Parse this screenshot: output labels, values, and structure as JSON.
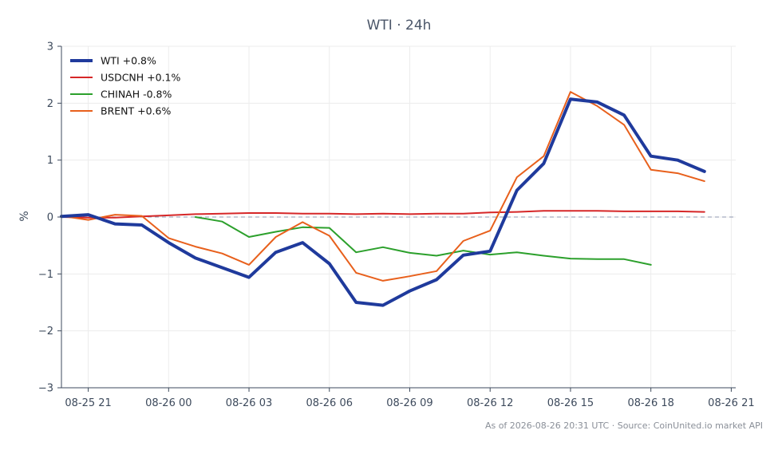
{
  "chart_data": {
    "type": "line",
    "title": "WTI · 24h",
    "xlabel": "",
    "ylabel": "%",
    "ylim": [
      -3,
      3
    ],
    "yticks": [
      -3,
      -2,
      -1,
      0,
      1,
      2,
      3
    ],
    "ytick_labels": [
      "−3",
      "−2",
      "−1",
      "0",
      "1",
      "2",
      "3"
    ],
    "xticks": [
      "08-25 21",
      "08-26 00",
      "08-26 03",
      "08-26 06",
      "08-26 09",
      "08-26 12",
      "08-26 15",
      "08-26 18",
      "08-26 21"
    ],
    "xlim": [
      "2026-08-25 20:00",
      "2026-08-26 21:10"
    ],
    "grid": true,
    "legend_position": "top-left",
    "zero_line": {
      "value": 0,
      "style": "dashed",
      "color": "#8f97b0"
    },
    "series": [
      {
        "name": "WTI +0.8%",
        "color": "#1f3a9c",
        "width": 4,
        "points": [
          [
            "2026-08-25 20:00",
            0.01
          ],
          [
            "2026-08-25 21:00",
            0.04
          ],
          [
            "2026-08-25 22:00",
            -0.12
          ],
          [
            "2026-08-25 23:00",
            -0.14
          ],
          [
            "2026-08-26 00:00",
            -0.45
          ],
          [
            "2026-08-26 01:00",
            -0.72
          ],
          [
            "2026-08-26 02:00",
            -0.89
          ],
          [
            "2026-08-26 03:00",
            -1.06
          ],
          [
            "2026-08-26 04:00",
            -0.62
          ],
          [
            "2026-08-26 05:00",
            -0.45
          ],
          [
            "2026-08-26 06:00",
            -0.82
          ],
          [
            "2026-08-26 07:00",
            -1.5
          ],
          [
            "2026-08-26 08:00",
            -1.55
          ],
          [
            "2026-08-26 09:00",
            -1.3
          ],
          [
            "2026-08-26 10:00",
            -1.1
          ],
          [
            "2026-08-26 11:00",
            -0.67
          ],
          [
            "2026-08-26 12:00",
            -0.6
          ],
          [
            "2026-08-26 13:00",
            0.47
          ],
          [
            "2026-08-26 14:00",
            0.94
          ],
          [
            "2026-08-26 15:00",
            2.07
          ],
          [
            "2026-08-26 16:00",
            2.02
          ],
          [
            "2026-08-26 17:00",
            1.79
          ],
          [
            "2026-08-26 18:00",
            1.07
          ],
          [
            "2026-08-26 19:00",
            1.0
          ],
          [
            "2026-08-26 20:00",
            0.8
          ]
        ]
      },
      {
        "name": "USDCNH +0.1%",
        "color": "#d62728",
        "width": 2,
        "points": [
          [
            "2026-08-25 20:00",
            0.0
          ],
          [
            "2026-08-25 21:00",
            -0.01
          ],
          [
            "2026-08-25 22:00",
            -0.01
          ],
          [
            "2026-08-25 23:00",
            0.01
          ],
          [
            "2026-08-26 00:00",
            0.03
          ],
          [
            "2026-08-26 01:00",
            0.05
          ],
          [
            "2026-08-26 02:00",
            0.06
          ],
          [
            "2026-08-26 03:00",
            0.07
          ],
          [
            "2026-08-26 04:00",
            0.07
          ],
          [
            "2026-08-26 05:00",
            0.06
          ],
          [
            "2026-08-26 06:00",
            0.06
          ],
          [
            "2026-08-26 07:00",
            0.05
          ],
          [
            "2026-08-26 08:00",
            0.06
          ],
          [
            "2026-08-26 09:00",
            0.05
          ],
          [
            "2026-08-26 10:00",
            0.06
          ],
          [
            "2026-08-26 11:00",
            0.06
          ],
          [
            "2026-08-26 12:00",
            0.08
          ],
          [
            "2026-08-26 13:00",
            0.09
          ],
          [
            "2026-08-26 14:00",
            0.11
          ],
          [
            "2026-08-26 15:00",
            0.11
          ],
          [
            "2026-08-26 16:00",
            0.11
          ],
          [
            "2026-08-26 17:00",
            0.1
          ],
          [
            "2026-08-26 18:00",
            0.1
          ],
          [
            "2026-08-26 19:00",
            0.1
          ],
          [
            "2026-08-26 20:00",
            0.09
          ]
        ]
      },
      {
        "name": "CHINAH -0.8%",
        "color": "#2ca02c",
        "width": 2,
        "points": [
          [
            "2026-08-26 01:00",
            0.0
          ],
          [
            "2026-08-26 02:00",
            -0.08
          ],
          [
            "2026-08-26 03:00",
            -0.35
          ],
          [
            "2026-08-26 04:00",
            -0.26
          ],
          [
            "2026-08-26 05:00",
            -0.18
          ],
          [
            "2026-08-26 06:00",
            -0.19
          ],
          [
            "2026-08-26 07:00",
            -0.62
          ],
          [
            "2026-08-26 08:00",
            -0.53
          ],
          [
            "2026-08-26 09:00",
            -0.63
          ],
          [
            "2026-08-26 10:00",
            -0.68
          ],
          [
            "2026-08-26 11:00",
            -0.59
          ],
          [
            "2026-08-26 12:00",
            -0.66
          ],
          [
            "2026-08-26 13:00",
            -0.62
          ],
          [
            "2026-08-26 14:00",
            -0.68
          ],
          [
            "2026-08-26 15:00",
            -0.73
          ],
          [
            "2026-08-26 16:00",
            -0.74
          ],
          [
            "2026-08-26 17:00",
            -0.74
          ],
          [
            "2026-08-26 18:00",
            -0.84
          ]
        ]
      },
      {
        "name": "BRENT +0.6%",
        "color": "#e8601c",
        "width": 2,
        "points": [
          [
            "2026-08-25 20:00",
            0.02
          ],
          [
            "2026-08-25 21:00",
            -0.05
          ],
          [
            "2026-08-25 22:00",
            0.04
          ],
          [
            "2026-08-25 23:00",
            0.02
          ],
          [
            "2026-08-26 00:00",
            -0.37
          ],
          [
            "2026-08-26 01:00",
            -0.52
          ],
          [
            "2026-08-26 02:00",
            -0.64
          ],
          [
            "2026-08-26 03:00",
            -0.84
          ],
          [
            "2026-08-26 04:00",
            -0.35
          ],
          [
            "2026-08-26 05:00",
            -0.09
          ],
          [
            "2026-08-26 06:00",
            -0.33
          ],
          [
            "2026-08-26 07:00",
            -0.98
          ],
          [
            "2026-08-26 08:00",
            -1.12
          ],
          [
            "2026-08-26 09:00",
            -1.04
          ],
          [
            "2026-08-26 10:00",
            -0.95
          ],
          [
            "2026-08-26 11:00",
            -0.42
          ],
          [
            "2026-08-26 12:00",
            -0.24
          ],
          [
            "2026-08-26 13:00",
            0.7
          ],
          [
            "2026-08-26 14:00",
            1.07
          ],
          [
            "2026-08-26 15:00",
            2.2
          ],
          [
            "2026-08-26 16:00",
            1.95
          ],
          [
            "2026-08-26 17:00",
            1.62
          ],
          [
            "2026-08-26 18:00",
            0.83
          ],
          [
            "2026-08-26 19:00",
            0.77
          ],
          [
            "2026-08-26 20:00",
            0.63
          ]
        ]
      }
    ]
  },
  "footer": "As of 2026-08-26 20:31 UTC · Source: CoinUnited.io market API"
}
